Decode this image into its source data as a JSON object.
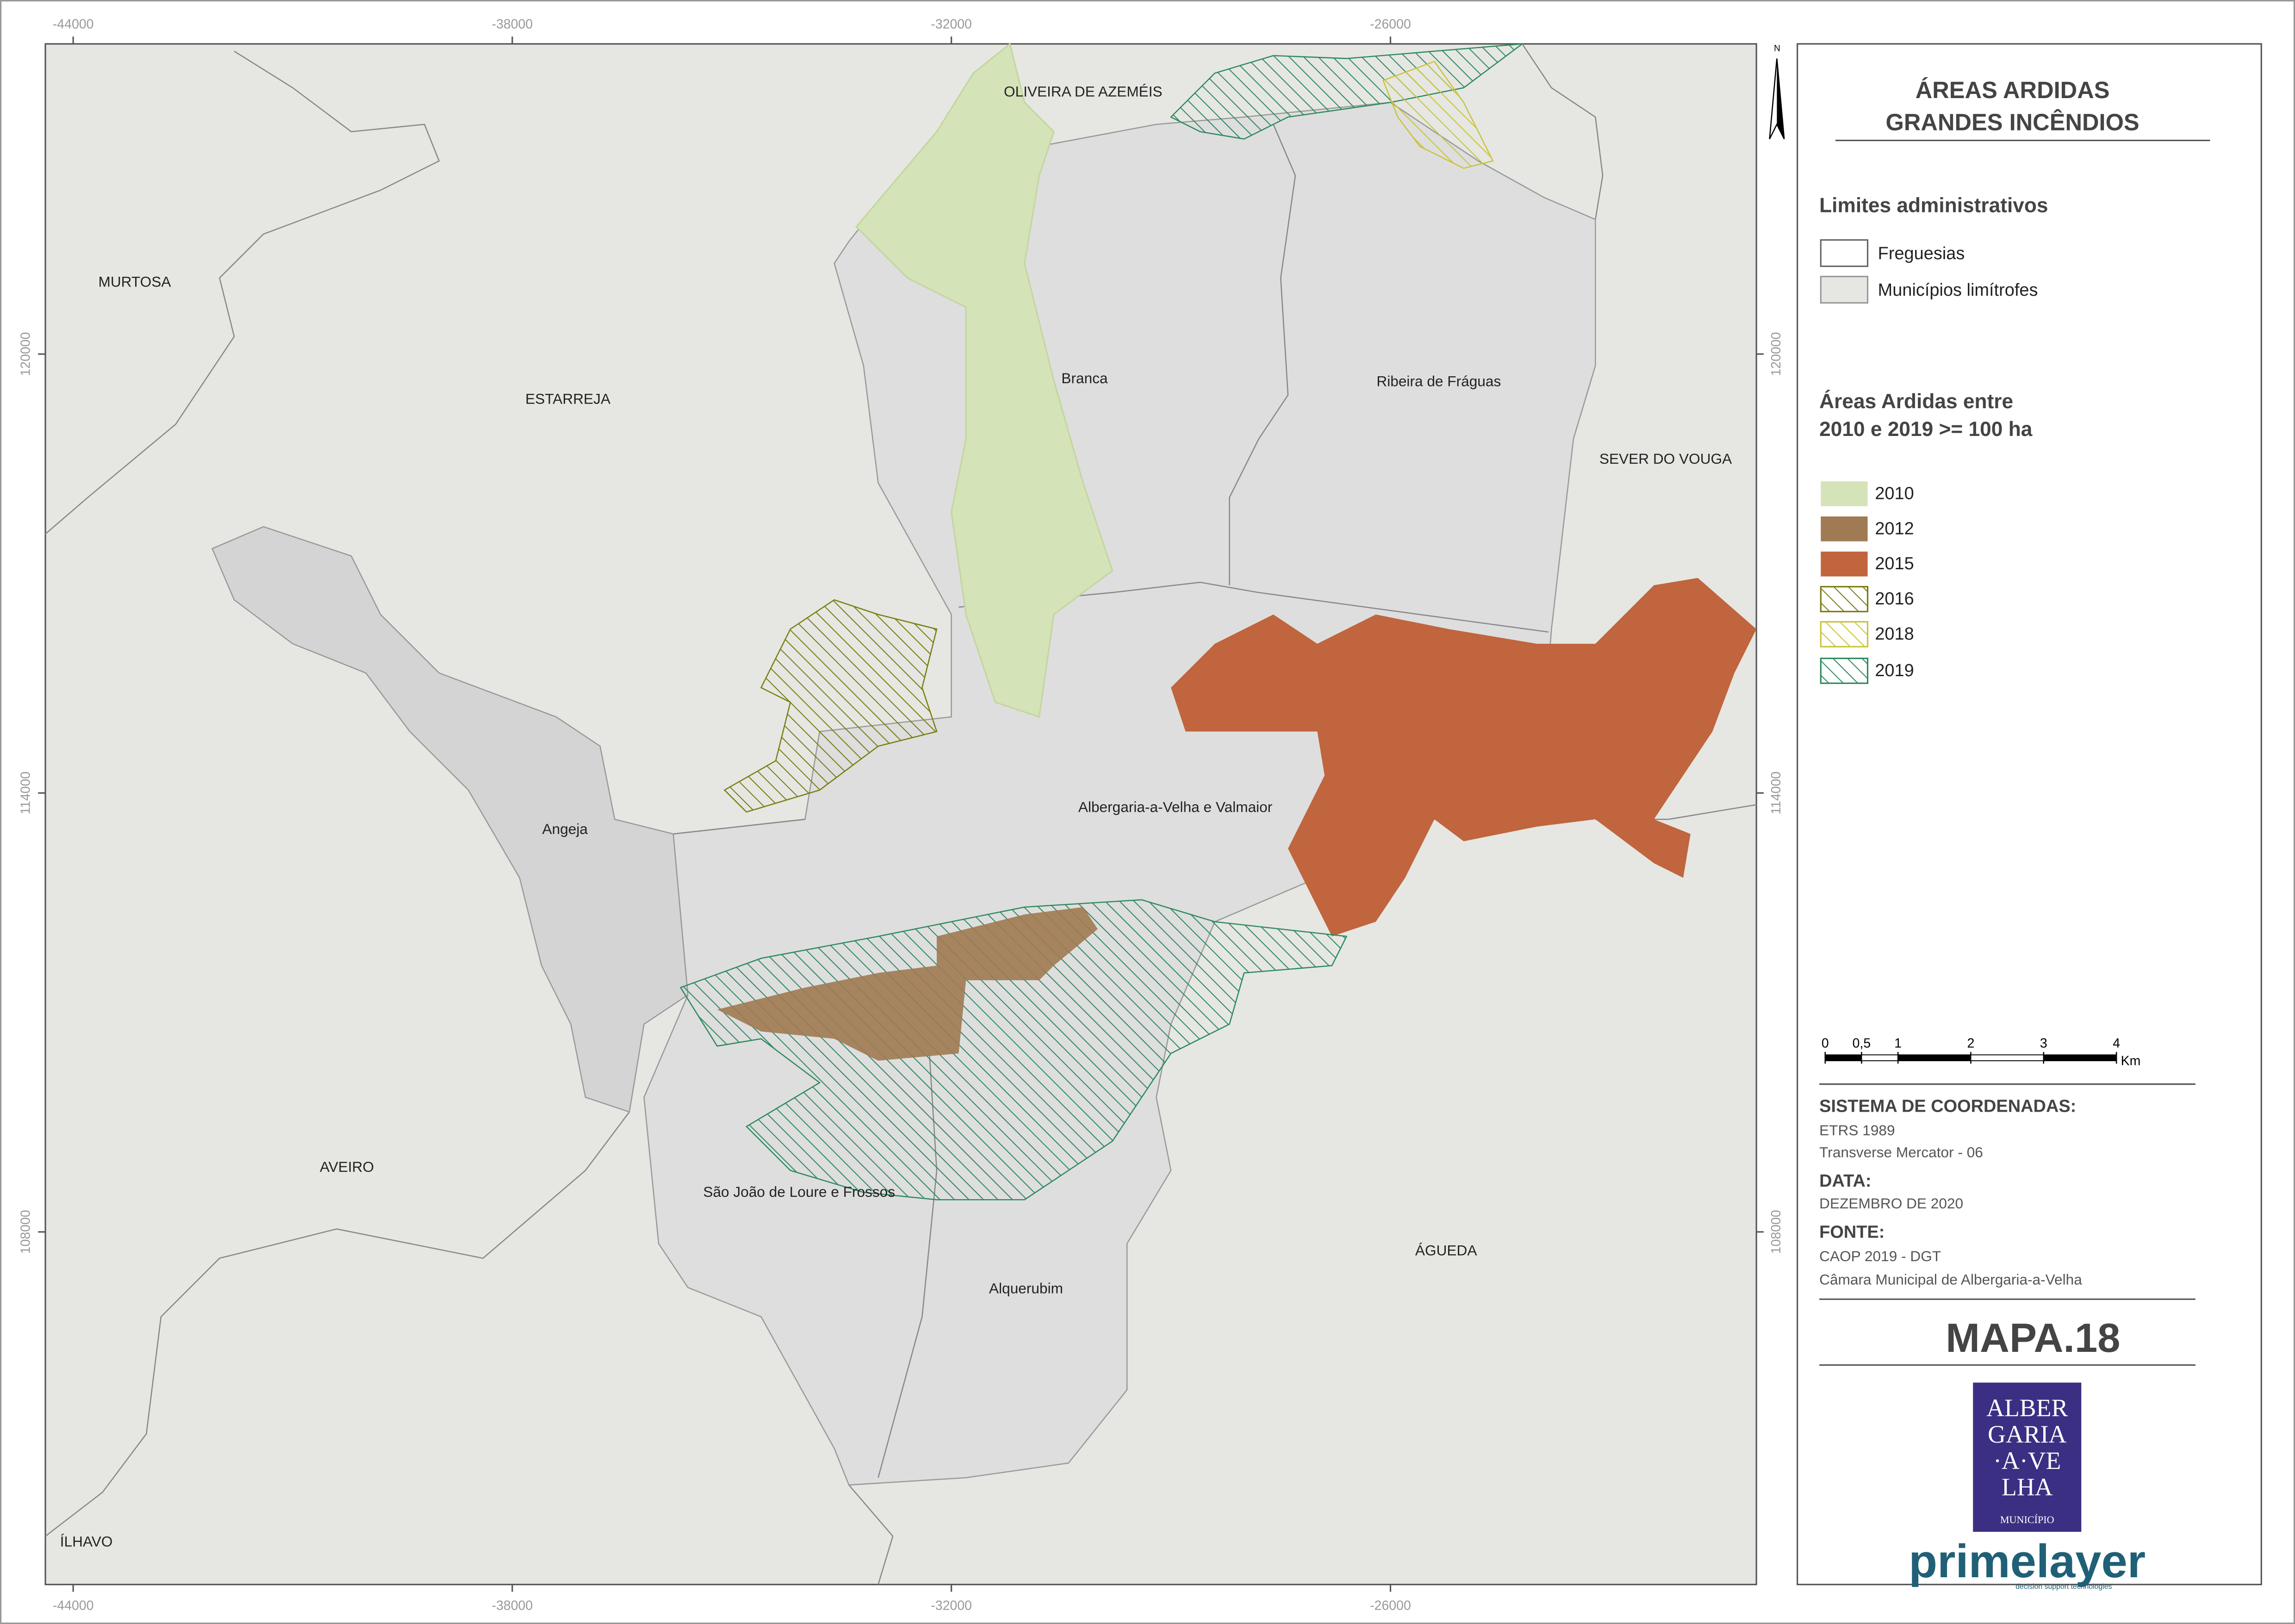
{
  "title": [
    "ÁREAS ARDIDAS",
    "GRANDES INCÊNDIOS"
  ],
  "north": "N",
  "grid": {
    "x_ticks": [
      -44000,
      -38000,
      -32000,
      -26000
    ],
    "y_ticks": [
      120000,
      114000,
      108000
    ]
  },
  "places": [
    "OLIVEIRA DE AZEMÉIS",
    "MURTOSA",
    "ESTARREJA",
    "Branca",
    "Ribeira de Fráguas",
    "SEVER DO VOUGA",
    "Angeja",
    "Albergaria-a-Velha e Valmaior",
    "AVEIRO",
    "São João de Loure e Frossos",
    "Alquerubim",
    "ÁGUEDA",
    "ÍLHAVO"
  ],
  "legend": {
    "admin_heading": "Limites administrativos",
    "admin_items": [
      "Freguesias",
      "Municípios limítrofes"
    ],
    "fire_heading": [
      "Áreas Ardidas entre",
      "2010 e 2019 >= 100 ha"
    ],
    "fire_items": [
      "2010",
      "2012",
      "2015",
      "2016",
      "2018",
      "2019"
    ]
  },
  "scale": {
    "ticks": [
      0,
      {
        "value": 0.5,
        "label": "0,5"
      },
      1,
      2,
      3,
      4
    ],
    "unit": "Km"
  },
  "info": {
    "coords_heading": "SISTEMA DE COORDENADAS:",
    "coords": [
      "ETRS 1989",
      "Transverse Mercator - 06"
    ],
    "date_heading": "DATA:",
    "date": "DEZEMBRO DE 2020",
    "source_heading": "FONTE:",
    "source": [
      "CAOP 2019 - DGT",
      "Câmara Municipal de Albergaria-a-Velha"
    ]
  },
  "map_id": "MAPA.18",
  "logo": {
    "lines": [
      "ALBER",
      "GARIA",
      "·A·VE",
      "LHA"
    ],
    "sub": "MUNICÍPIO"
  },
  "brand": {
    "name": "primelayer",
    "tagline": "decision support technologies"
  }
}
